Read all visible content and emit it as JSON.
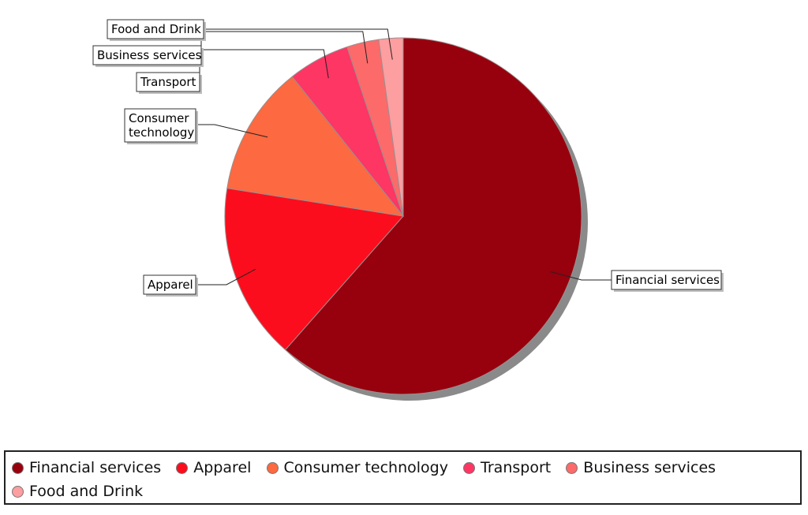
{
  "chart_data": {
    "type": "pie",
    "title": "",
    "categories": [
      "Financial services",
      "Apparel",
      "Consumer technology",
      "Transport",
      "Business services",
      "Food and Drink"
    ],
    "values": [
      61.5,
      16.0,
      11.8,
      5.6,
      2.9,
      2.2
    ],
    "colors": [
      "#97000d",
      "#fb0d1d",
      "#fd6940",
      "#fd3664",
      "#fd6a6a",
      "#fd9ea0"
    ],
    "start_angle_deg": 0,
    "direction": "clockwise",
    "shadow": true,
    "labels": [
      {
        "text": "Financial services",
        "lines": [
          "Financial services"
        ]
      },
      {
        "text": "Apparel",
        "lines": [
          "Apparel"
        ]
      },
      {
        "text": "Consumer technology",
        "lines": [
          "Consumer",
          "technology"
        ]
      },
      {
        "text": "Transport",
        "lines": [
          "Transport"
        ]
      },
      {
        "text": "Business services",
        "lines": [
          "Business services"
        ]
      },
      {
        "text": "Food and Drink",
        "lines": [
          "Food and Drink"
        ]
      }
    ],
    "legend_position": "bottom"
  },
  "legend": {
    "items": [
      {
        "label": "Financial services",
        "color": "#97000d"
      },
      {
        "label": "Apparel",
        "color": "#fb0d1d"
      },
      {
        "label": "Consumer technology",
        "color": "#fd6940"
      },
      {
        "label": "Transport",
        "color": "#fd3664"
      },
      {
        "label": "Business services",
        "color": "#fd6a6a"
      },
      {
        "label": "Food and Drink",
        "color": "#fd9ea0"
      }
    ]
  }
}
